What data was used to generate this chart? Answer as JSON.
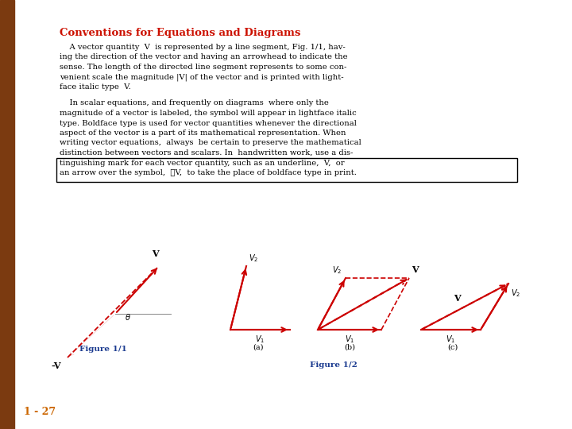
{
  "title": "Conventions for Equations and Diagrams",
  "title_color": "#cc1100",
  "bg_color": "#ffffff",
  "page_bg": "#f0ede8",
  "left_bar_color": "#7B3A10",
  "page_label": "1 - 27",
  "page_label_color": "#cc6600",
  "arrow_color": "#cc0000",
  "fig1_label": "Figure 1/1",
  "fig2_label": "Figure 1/2",
  "fig_label_color": "#1a3a8f",
  "para1_lines": [
    "    A vector quantity  V  is represented by a line segment, Fig. 1/1, hav-",
    "ing the direction of the vector and having an arrowhead to indicate the",
    "sense. The length of the directed line segment represents to some con-",
    "venient scale the magnitude |V| of the vector and is printed with light-",
    "face italic type  V."
  ],
  "para2_lines": [
    "    In scalar equations, and frequently on diagrams  where only the",
    "magnitude of a vector is labeled, the symbol will appear in lightface italic",
    "type. Boldface type is used for vector quantities whenever the directional",
    "aspect of the vector is a part of its mathematical representation. When",
    "writing vector equations,  always  be certain to preserve the mathematical",
    "distinction between vectors and scalars. In  handwritten work, use a dis-"
  ],
  "box_lines": [
    "tinguishing mark for each vector quantity, such as an underline,  V,  or",
    "an arrow over the symbol,  ⃗V,  to take the place of boldface type in print."
  ]
}
